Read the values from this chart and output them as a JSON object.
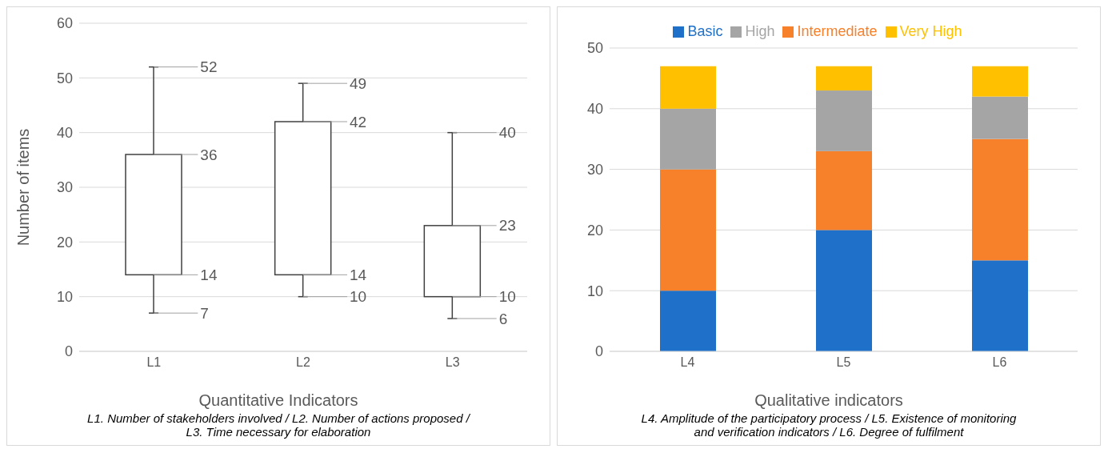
{
  "chart_data": [
    {
      "type": "bar",
      "categories": [
        "L1",
        "L2",
        "L3"
      ],
      "base": [
        14,
        14,
        10
      ],
      "values": [
        22,
        28,
        13
      ],
      "errors": [
        [
          7,
          52
        ],
        [
          10,
          49
        ],
        [
          6,
          40
        ]
      ],
      "color": "#ffffff",
      "ylabel": "Number of items",
      "xlabel": "Quantitative Indicators",
      "ylim": [
        0,
        60
      ],
      "yticks": [
        0,
        10,
        20,
        30,
        40,
        50,
        60
      ],
      "grid": "y",
      "annotations": [
        {
          "text": "52",
          "x": "L1",
          "y": 52
        },
        {
          "text": "36",
          "x": "L1",
          "y": 36
        },
        {
          "text": "14",
          "x": "L1",
          "y": 14
        },
        {
          "text": "7",
          "x": "L1",
          "y": 7
        },
        {
          "text": "49",
          "x": "L2",
          "y": 49
        },
        {
          "text": "42",
          "x": "L2",
          "y": 42
        },
        {
          "text": "14",
          "x": "L2",
          "y": 14
        },
        {
          "text": "10",
          "x": "L2",
          "y": 10
        },
        {
          "text": "40",
          "x": "L3",
          "y": 40
        },
        {
          "text": "23",
          "x": "L3",
          "y": 23
        },
        {
          "text": "10",
          "x": "L3",
          "y": 10
        },
        {
          "text": "6",
          "x": "L3",
          "y": 6
        },
        "L1. Number of stakeholders involved / L2. Number of actions proposed / L3. Time necessary for elaboration"
      ]
    },
    {
      "type": "bar",
      "stacked": true,
      "categories": [
        "L4",
        "L5",
        "L6"
      ],
      "xlabel": "Qualitative indicators",
      "ylim": [
        0,
        50
      ],
      "yticks": [
        0,
        10,
        20,
        30,
        40,
        50
      ],
      "grid": "y",
      "legend": "top",
      "series": [
        {
          "name": "Basic",
          "color": "#1f70c8",
          "values": [
            10,
            20,
            15
          ]
        },
        {
          "name": "Intermediate",
          "color": "#f7802a",
          "values": [
            20,
            13,
            20
          ]
        },
        {
          "name": "High",
          "color": "#a5a5a5",
          "values": [
            10,
            10,
            7
          ]
        },
        {
          "name": "Very High",
          "color": "#ffc000",
          "values": [
            7,
            4,
            5
          ]
        }
      ],
      "annotations": [
        "L4. Amplitude of the participatory process / L5. Existence of monitoring and verification indicators / L6. Degree of fulfilment"
      ]
    }
  ]
}
